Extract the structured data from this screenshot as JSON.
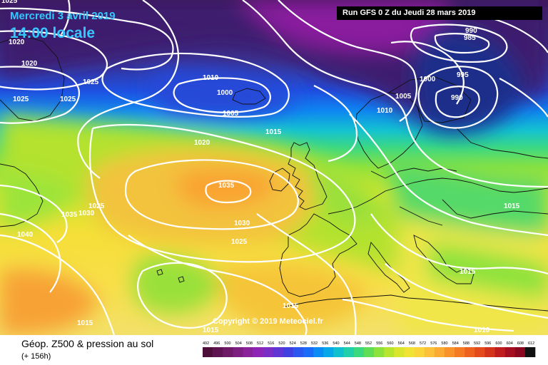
{
  "header": {
    "date": "Mercredi 3 avril 2019",
    "time": "14:00 locale",
    "run": "Run GFS 0 Z du Jeudi 28 mars 2019"
  },
  "copyright": "Copyright © 2019 Meteociel.fr",
  "footer": {
    "title": "Géop. Z500 & pression au sol",
    "subtitle": "(+ 156h)"
  },
  "isobar_labels": [
    "1025",
    "1020",
    "1020",
    "1025",
    "1025",
    "1025",
    "1010",
    "1000",
    "1005",
    "1015",
    "1020",
    "1035",
    "1035",
    "1030",
    "1025",
    "1040",
    "1030",
    "1025",
    "1015",
    "1015",
    "1015",
    "1010",
    "990",
    "985",
    "995",
    "1000",
    "1005",
    "990",
    "1015",
    "1015",
    "1010"
  ],
  "scale": {
    "ticks": [
      "492",
      "496",
      "500",
      "504",
      "508",
      "512",
      "516",
      "520",
      "524",
      "528",
      "532",
      "536",
      "540",
      "544",
      "548",
      "552",
      "556",
      "560",
      "564",
      "568",
      "572",
      "576",
      "580",
      "584",
      "588",
      "592",
      "596",
      "600",
      "604",
      "608",
      "612"
    ],
    "colors": [
      "#4d0f3a",
      "#5e1450",
      "#6e1a66",
      "#7d1f80",
      "#8a229a",
      "#8f25b6",
      "#7a2ec6",
      "#5f35d4",
      "#4040e0",
      "#2b56ef",
      "#1a6cf8",
      "#0b8cf5",
      "#08a8e8",
      "#10c0cf",
      "#22cfab",
      "#3ad87f",
      "#60dd57",
      "#8ce23c",
      "#b5e52e",
      "#d8e62c",
      "#f1e334",
      "#fad53a",
      "#fcc13a",
      "#fbaa33",
      "#f8922b",
      "#f47a24",
      "#ee621f",
      "#e34a1c",
      "#d4331b",
      "#bf1d1d",
      "#a40e1f",
      "#8a0720",
      "#111111"
    ]
  }
}
